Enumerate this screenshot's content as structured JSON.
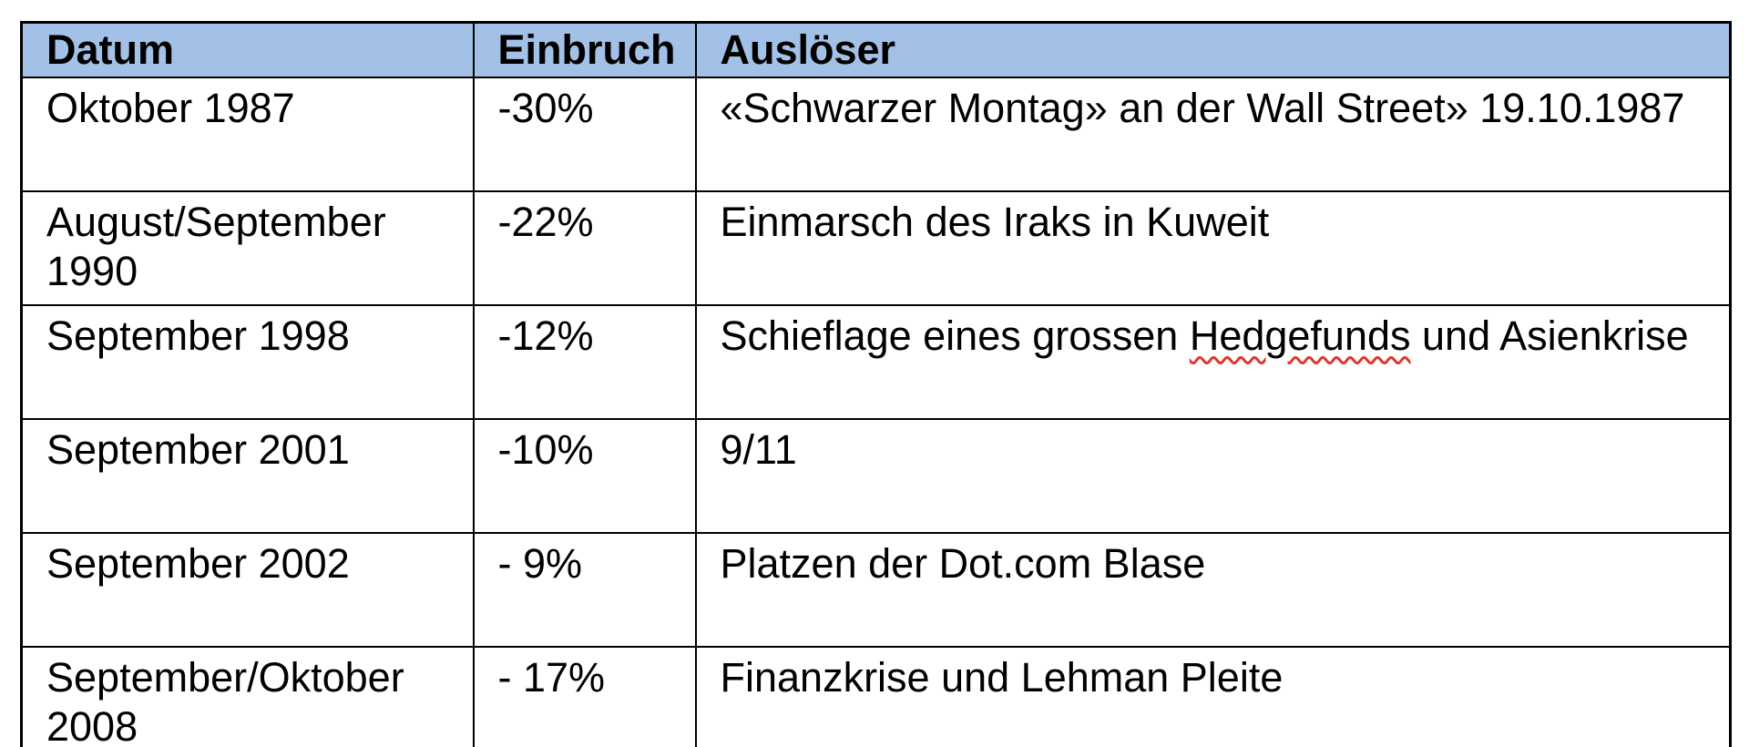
{
  "table": {
    "columns": [
      {
        "key": "datum",
        "label": "Datum"
      },
      {
        "key": "einbruch",
        "label": "Einbruch"
      },
      {
        "key": "ausloeser",
        "label": "Auslöser"
      }
    ],
    "rows": [
      {
        "datum": "Oktober 1987",
        "einbruch": "-30%",
        "ausloeser": [
          {
            "text": "«Schwarzer Montag» an der Wall Street» 19.10.1987"
          }
        ]
      },
      {
        "datum": "August/September 1990",
        "einbruch": "-22%",
        "ausloeser": [
          {
            "text": "Einmarsch des Iraks in Kuweit"
          }
        ]
      },
      {
        "datum": "September 1998",
        "einbruch": "-12%",
        "ausloeser": [
          {
            "text": "Schieflage eines grossen "
          },
          {
            "text": "Hedgefunds",
            "spellcheck": true
          },
          {
            "text": " und Asienkrise"
          }
        ]
      },
      {
        "datum": "September 2001",
        "einbruch": "-10%",
        "ausloeser": [
          {
            "text": "9/11"
          }
        ]
      },
      {
        "datum": "September 2002",
        "einbruch": "- 9%",
        "ausloeser": [
          {
            "text": "Platzen der Dot.com Blase"
          }
        ]
      },
      {
        "datum": "September/Oktober 2008",
        "einbruch": "- 17%",
        "ausloeser": [
          {
            "text": "Finanzkrise und Lehman Pleite"
          }
        ]
      }
    ],
    "colors": {
      "header_background": "#a3c1e6",
      "border": "#000000",
      "text": "#000000",
      "spellcheck_underline": "#e0342b"
    }
  }
}
